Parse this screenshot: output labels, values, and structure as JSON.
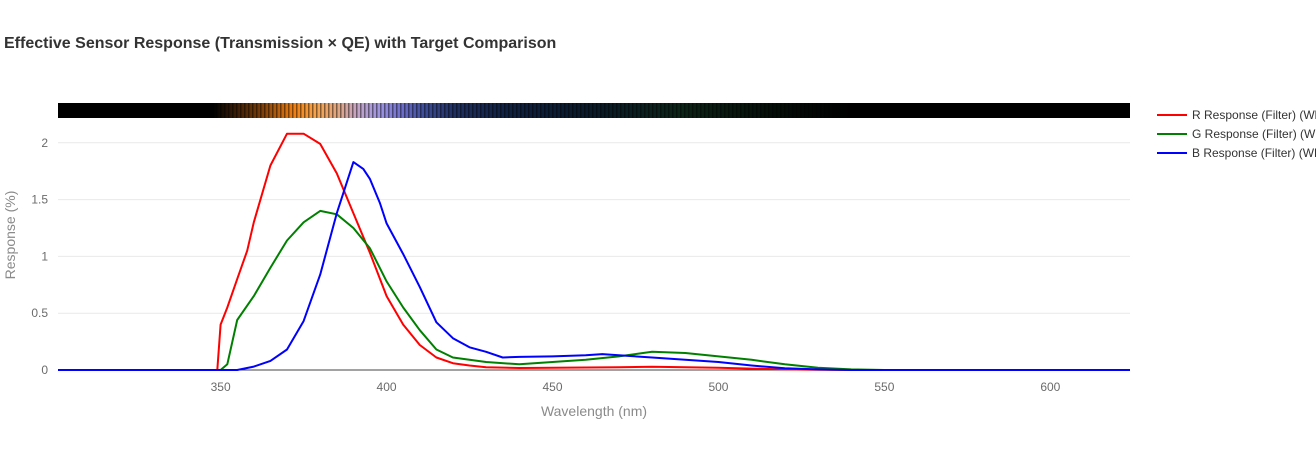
{
  "chart_data": {
    "type": "line",
    "title": "Effective Sensor Response (Transmission × QE) with Target Comparison",
    "xlabel": "Wavelength (nm)",
    "ylabel": "Response (%)",
    "xlim": [
      301,
      624
    ],
    "ylim": [
      0,
      2.35
    ],
    "x_ticks": [
      350,
      400,
      450,
      500,
      550,
      600
    ],
    "x_tick_labels": [
      "350",
      "400",
      "450",
      "500",
      "550",
      "600"
    ],
    "y_ticks": [
      0,
      0.5,
      1,
      1.5,
      2
    ],
    "y_tick_labels": [
      "0",
      "0.5",
      "1",
      "1.5",
      "2"
    ],
    "grid": true,
    "legend_position": "right",
    "spectrum_strip": true,
    "series": [
      {
        "name": "R Response (Filter) (WB)",
        "legend_label": "R Response (Filter) (Wl",
        "color": "#ff0000",
        "points": [
          [
            301,
            0
          ],
          [
            349,
            0
          ],
          [
            350,
            0.4
          ],
          [
            352,
            0.55
          ],
          [
            355,
            0.8
          ],
          [
            358,
            1.05
          ],
          [
            360,
            1.3
          ],
          [
            365,
            1.8
          ],
          [
            370,
            2.08
          ],
          [
            375,
            2.08
          ],
          [
            380,
            1.99
          ],
          [
            385,
            1.73
          ],
          [
            390,
            1.38
          ],
          [
            395,
            1.03
          ],
          [
            400,
            0.65
          ],
          [
            405,
            0.4
          ],
          [
            410,
            0.22
          ],
          [
            415,
            0.11
          ],
          [
            420,
            0.06
          ],
          [
            425,
            0.04
          ],
          [
            430,
            0.025
          ],
          [
            440,
            0.018
          ],
          [
            450,
            0.02
          ],
          [
            460,
            0.022
          ],
          [
            470,
            0.025
          ],
          [
            480,
            0.028
          ],
          [
            490,
            0.025
          ],
          [
            500,
            0.02
          ],
          [
            510,
            0.012
          ],
          [
            520,
            0.005
          ],
          [
            530,
            0.002
          ],
          [
            540,
            0
          ],
          [
            624,
            0
          ]
        ]
      },
      {
        "name": "G Response (Filter) (WB)",
        "legend_label": "G Response (Filter) (Wl",
        "color": "#008000",
        "points": [
          [
            301,
            0
          ],
          [
            350,
            0
          ],
          [
            352,
            0.05
          ],
          [
            355,
            0.44
          ],
          [
            360,
            0.65
          ],
          [
            365,
            0.9
          ],
          [
            370,
            1.14
          ],
          [
            375,
            1.3
          ],
          [
            380,
            1.4
          ],
          [
            385,
            1.37
          ],
          [
            390,
            1.25
          ],
          [
            395,
            1.07
          ],
          [
            400,
            0.78
          ],
          [
            405,
            0.55
          ],
          [
            410,
            0.35
          ],
          [
            415,
            0.18
          ],
          [
            420,
            0.11
          ],
          [
            430,
            0.07
          ],
          [
            440,
            0.05
          ],
          [
            450,
            0.07
          ],
          [
            460,
            0.09
          ],
          [
            470,
            0.12
          ],
          [
            480,
            0.16
          ],
          [
            490,
            0.15
          ],
          [
            500,
            0.12
          ],
          [
            510,
            0.09
          ],
          [
            520,
            0.05
          ],
          [
            530,
            0.02
          ],
          [
            540,
            0.005
          ],
          [
            550,
            0
          ],
          [
            624,
            0
          ]
        ]
      },
      {
        "name": "B Response (Filter) (WB)",
        "legend_label": "B Response (Filter) (WE",
        "color": "#0000ff",
        "points": [
          [
            301,
            0
          ],
          [
            355,
            0
          ],
          [
            360,
            0.03
          ],
          [
            365,
            0.08
          ],
          [
            370,
            0.18
          ],
          [
            375,
            0.43
          ],
          [
            380,
            0.84
          ],
          [
            385,
            1.38
          ],
          [
            390,
            1.83
          ],
          [
            393,
            1.77
          ],
          [
            395,
            1.68
          ],
          [
            398,
            1.47
          ],
          [
            400,
            1.29
          ],
          [
            405,
            1.02
          ],
          [
            410,
            0.73
          ],
          [
            415,
            0.42
          ],
          [
            420,
            0.28
          ],
          [
            425,
            0.2
          ],
          [
            430,
            0.16
          ],
          [
            435,
            0.11
          ],
          [
            440,
            0.115
          ],
          [
            450,
            0.12
          ],
          [
            460,
            0.13
          ],
          [
            465,
            0.14
          ],
          [
            470,
            0.13
          ],
          [
            480,
            0.11
          ],
          [
            490,
            0.09
          ],
          [
            500,
            0.07
          ],
          [
            510,
            0.04
          ],
          [
            520,
            0.015
          ],
          [
            530,
            0.005
          ],
          [
            540,
            0
          ],
          [
            624,
            0
          ]
        ]
      }
    ]
  }
}
